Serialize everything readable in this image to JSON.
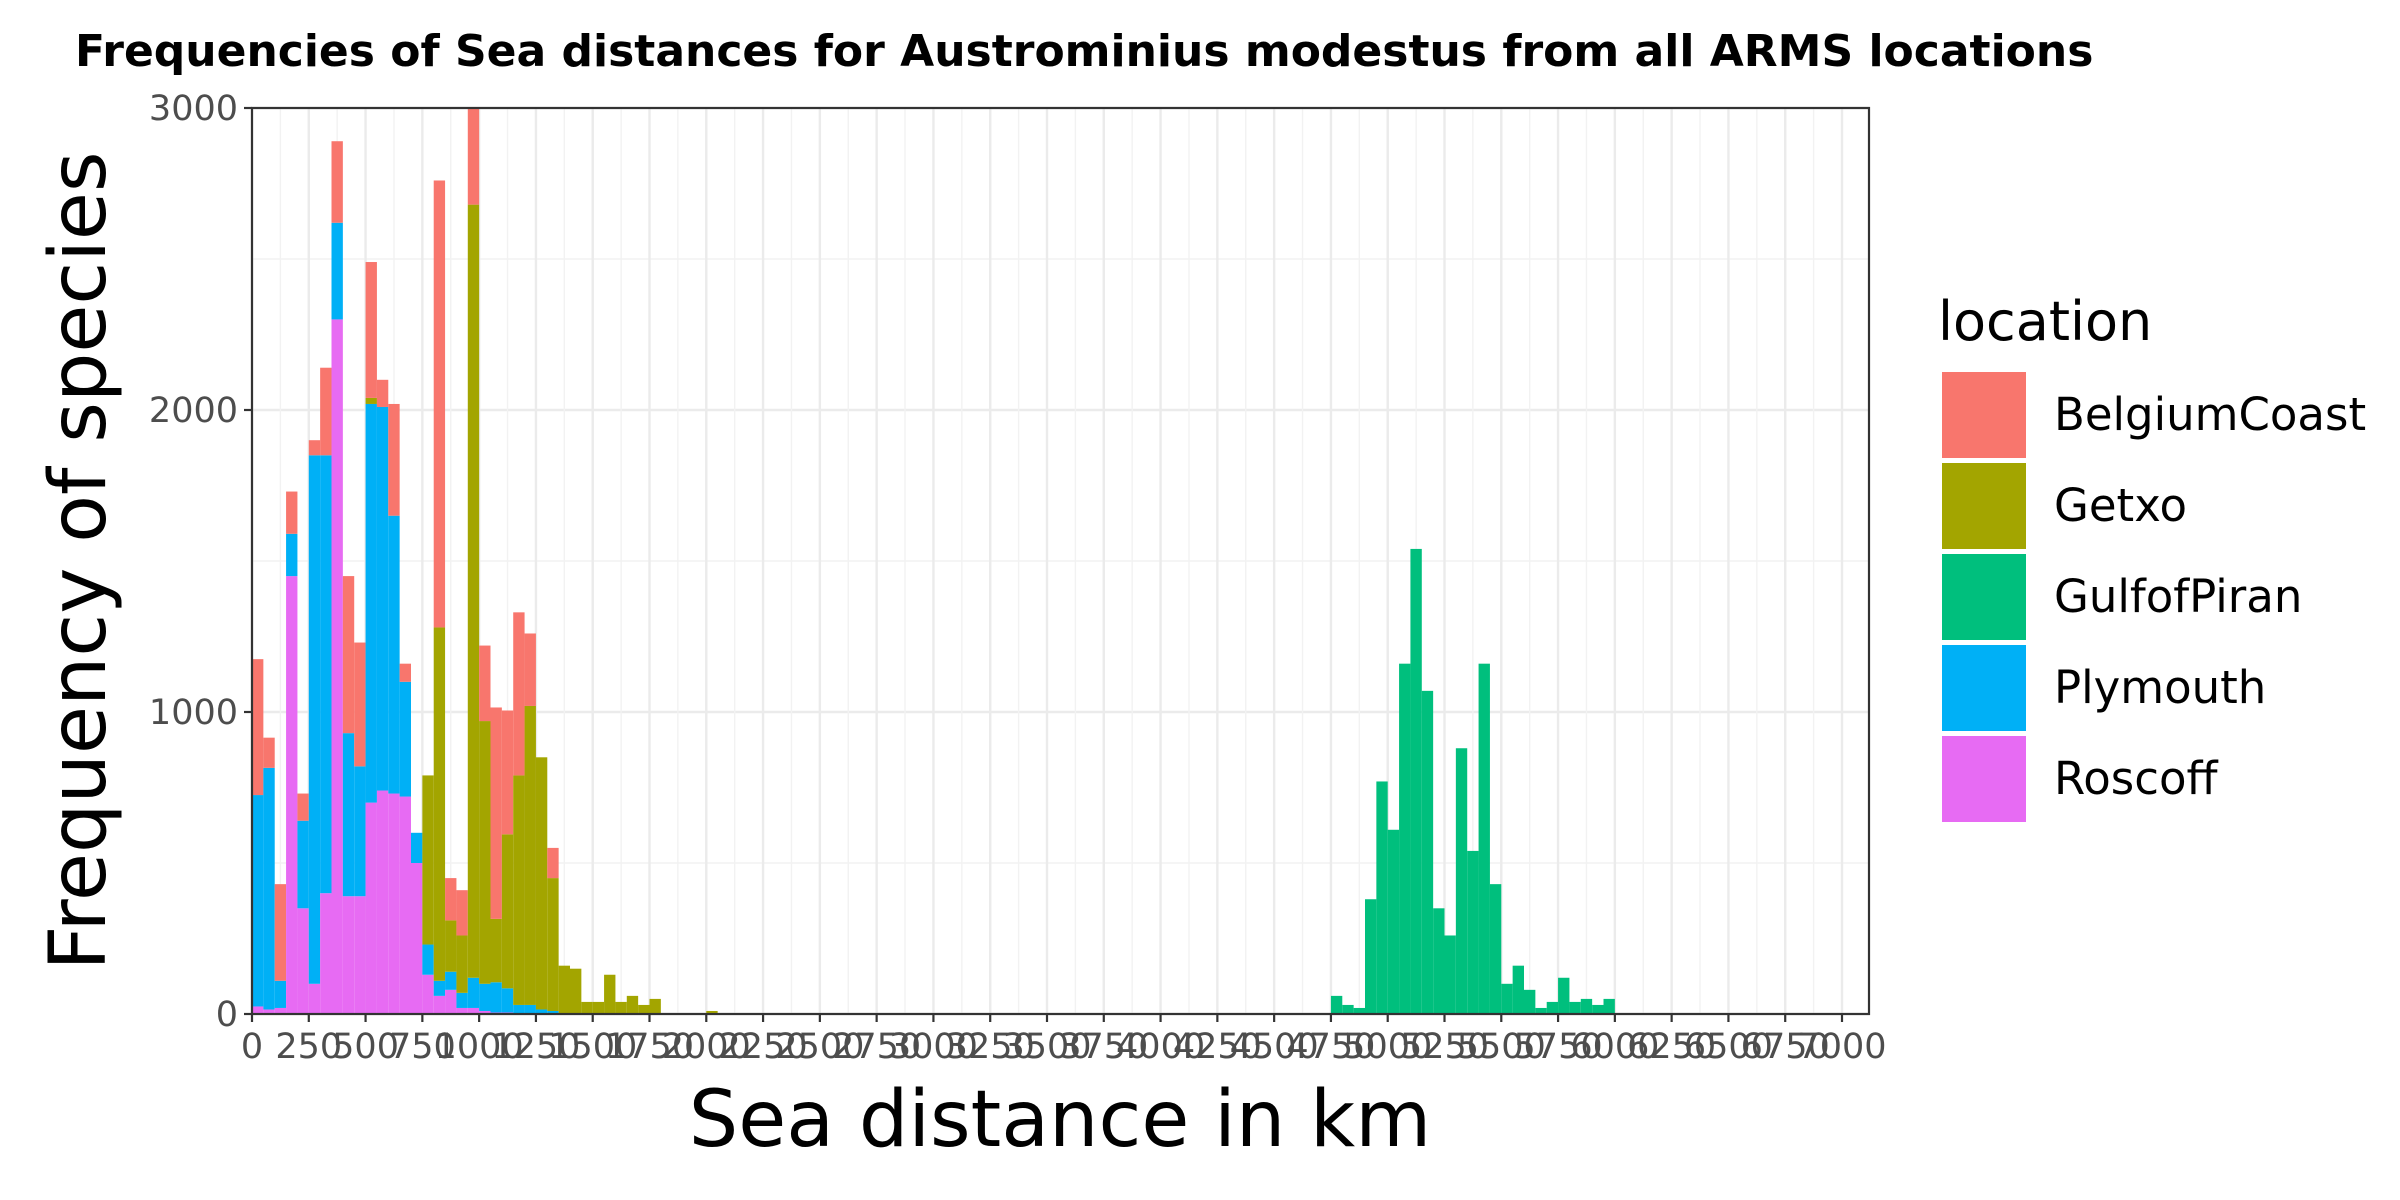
{
  "chart_data": {
    "type": "bar",
    "stacked": true,
    "title": "Frequencies of Sea distances for Austrominius modestus from all ARMS locations",
    "xlabel": "Sea distance in km",
    "ylabel": "Frequency of species",
    "xlim": [
      0,
      7150
    ],
    "ylim": [
      0,
      3000
    ],
    "bin_width": 50,
    "x_ticks": [
      0,
      250,
      500,
      750,
      1000,
      1250,
      1500,
      1750,
      2000,
      2250,
      2500,
      2750,
      3000,
      3250,
      3500,
      3750,
      4000,
      4250,
      4500,
      4750,
      5000,
      5250,
      5500,
      5750,
      6000,
      6250,
      6500,
      6750,
      7000
    ],
    "y_ticks": [
      0,
      1000,
      2000,
      3000
    ],
    "grid": true,
    "legend_title": "location",
    "legend_position": "right",
    "series": [
      {
        "name": "BelgiumCoast",
        "color": "#F8766D"
      },
      {
        "name": "Getxo",
        "color": "#A3A500"
      },
      {
        "name": "GulfofPiran",
        "color": "#00BF7D"
      },
      {
        "name": "Plymouth",
        "color": "#00B0F6"
      },
      {
        "name": "Roscoff",
        "color": "#E76BF3"
      }
    ],
    "stack_order": [
      "Roscoff",
      "Plymouth",
      "GulfofPiran",
      "Getxo",
      "BelgiumCoast"
    ],
    "bins": [
      {
        "x": 0,
        "BelgiumCoast": 450,
        "Getxo": 0,
        "GulfofPiran": 0,
        "Plymouth": 700,
        "Roscoff": 25
      },
      {
        "x": 50,
        "BelgiumCoast": 100,
        "Getxo": 0,
        "GulfofPiran": 0,
        "Plymouth": 800,
        "Roscoff": 15
      },
      {
        "x": 100,
        "BelgiumCoast": 320,
        "Getxo": 0,
        "GulfofPiran": 0,
        "Plymouth": 90,
        "Roscoff": 20
      },
      {
        "x": 150,
        "BelgiumCoast": 140,
        "Getxo": 0,
        "GulfofPiran": 0,
        "Plymouth": 140,
        "Roscoff": 1450
      },
      {
        "x": 200,
        "BelgiumCoast": 90,
        "Getxo": 0,
        "GulfofPiran": 0,
        "Plymouth": 290,
        "Roscoff": 350
      },
      {
        "x": 250,
        "BelgiumCoast": 50,
        "Getxo": 0,
        "GulfofPiran": 0,
        "Plymouth": 1750,
        "Roscoff": 100
      },
      {
        "x": 300,
        "BelgiumCoast": 290,
        "Getxo": 0,
        "GulfofPiran": 0,
        "Plymouth": 1450,
        "Roscoff": 400
      },
      {
        "x": 350,
        "BelgiumCoast": 270,
        "Getxo": 0,
        "GulfofPiran": 0,
        "Plymouth": 320,
        "Roscoff": 2300
      },
      {
        "x": 400,
        "BelgiumCoast": 520,
        "Getxo": 0,
        "GulfofPiran": 0,
        "Plymouth": 540,
        "Roscoff": 390
      },
      {
        "x": 450,
        "BelgiumCoast": 410,
        "Getxo": 0,
        "GulfofPiran": 0,
        "Plymouth": 430,
        "Roscoff": 390
      },
      {
        "x": 500,
        "BelgiumCoast": 450,
        "Getxo": 20,
        "GulfofPiran": 0,
        "Plymouth": 1320,
        "Roscoff": 700
      },
      {
        "x": 550,
        "BelgiumCoast": 90,
        "Getxo": 0,
        "GulfofPiran": 0,
        "Plymouth": 1270,
        "Roscoff": 740
      },
      {
        "x": 600,
        "BelgiumCoast": 370,
        "Getxo": 0,
        "GulfofPiran": 0,
        "Plymouth": 920,
        "Roscoff": 730
      },
      {
        "x": 650,
        "BelgiumCoast": 60,
        "Getxo": 0,
        "GulfofPiran": 0,
        "Plymouth": 380,
        "Roscoff": 720
      },
      {
        "x": 700,
        "BelgiumCoast": 0,
        "Getxo": 0,
        "GulfofPiran": 0,
        "Plymouth": 100,
        "Roscoff": 500
      },
      {
        "x": 750,
        "BelgiumCoast": 0,
        "Getxo": 560,
        "GulfofPiran": 0,
        "Plymouth": 100,
        "Roscoff": 130
      },
      {
        "x": 800,
        "BelgiumCoast": 1480,
        "Getxo": 1170,
        "GulfofPiran": 0,
        "Plymouth": 50,
        "Roscoff": 60
      },
      {
        "x": 850,
        "BelgiumCoast": 140,
        "Getxo": 170,
        "GulfofPiran": 0,
        "Plymouth": 60,
        "Roscoff": 80
      },
      {
        "x": 900,
        "BelgiumCoast": 150,
        "Getxo": 190,
        "GulfofPiran": 0,
        "Plymouth": 50,
        "Roscoff": 20
      },
      {
        "x": 950,
        "BelgiumCoast": 320,
        "Getxo": 2560,
        "GulfofPiran": 0,
        "Plymouth": 100,
        "Roscoff": 20
      },
      {
        "x": 1000,
        "BelgiumCoast": 250,
        "Getxo": 870,
        "GulfofPiran": 0,
        "Plymouth": 90,
        "Roscoff": 10
      },
      {
        "x": 1050,
        "BelgiumCoast": 700,
        "Getxo": 210,
        "GulfofPiran": 0,
        "Plymouth": 100,
        "Roscoff": 5
      },
      {
        "x": 1100,
        "BelgiumCoast": 410,
        "Getxo": 510,
        "GulfofPiran": 0,
        "Plymouth": 80,
        "Roscoff": 5
      },
      {
        "x": 1150,
        "BelgiumCoast": 540,
        "Getxo": 760,
        "GulfofPiran": 0,
        "Plymouth": 30,
        "Roscoff": 0
      },
      {
        "x": 1200,
        "BelgiumCoast": 240,
        "Getxo": 990,
        "GulfofPiran": 0,
        "Plymouth": 30,
        "Roscoff": 0
      },
      {
        "x": 1250,
        "BelgiumCoast": 0,
        "Getxo": 835,
        "GulfofPiran": 0,
        "Plymouth": 15,
        "Roscoff": 0
      },
      {
        "x": 1300,
        "BelgiumCoast": 100,
        "Getxo": 440,
        "GulfofPiran": 0,
        "Plymouth": 10,
        "Roscoff": 0
      },
      {
        "x": 1350,
        "BelgiumCoast": 0,
        "Getxo": 160,
        "GulfofPiran": 0,
        "Plymouth": 0,
        "Roscoff": 0
      },
      {
        "x": 1400,
        "BelgiumCoast": 0,
        "Getxo": 150,
        "GulfofPiran": 0,
        "Plymouth": 0,
        "Roscoff": 0
      },
      {
        "x": 1450,
        "BelgiumCoast": 0,
        "Getxo": 40,
        "GulfofPiran": 0,
        "Plymouth": 0,
        "Roscoff": 0
      },
      {
        "x": 1500,
        "BelgiumCoast": 0,
        "Getxo": 40,
        "GulfofPiran": 0,
        "Plymouth": 0,
        "Roscoff": 0
      },
      {
        "x": 1550,
        "BelgiumCoast": 0,
        "Getxo": 130,
        "GulfofPiran": 0,
        "Plymouth": 0,
        "Roscoff": 0
      },
      {
        "x": 1600,
        "BelgiumCoast": 0,
        "Getxo": 40,
        "GulfofPiran": 0,
        "Plymouth": 0,
        "Roscoff": 0
      },
      {
        "x": 1650,
        "BelgiumCoast": 0,
        "Getxo": 60,
        "GulfofPiran": 0,
        "Plymouth": 0,
        "Roscoff": 0
      },
      {
        "x": 1700,
        "BelgiumCoast": 0,
        "Getxo": 30,
        "GulfofPiran": 0,
        "Plymouth": 0,
        "Roscoff": 0
      },
      {
        "x": 1750,
        "BelgiumCoast": 0,
        "Getxo": 50,
        "GulfofPiran": 0,
        "Plymouth": 0,
        "Roscoff": 0
      },
      {
        "x": 2000,
        "BelgiumCoast": 0,
        "Getxo": 10,
        "GulfofPiran": 0,
        "Plymouth": 0,
        "Roscoff": 0
      },
      {
        "x": 4750,
        "BelgiumCoast": 0,
        "Getxo": 0,
        "GulfofPiran": 60,
        "Plymouth": 0,
        "Roscoff": 0
      },
      {
        "x": 4800,
        "BelgiumCoast": 0,
        "Getxo": 0,
        "GulfofPiran": 30,
        "Plymouth": 0,
        "Roscoff": 0
      },
      {
        "x": 4850,
        "BelgiumCoast": 0,
        "Getxo": 0,
        "GulfofPiran": 20,
        "Plymouth": 0,
        "Roscoff": 0
      },
      {
        "x": 4900,
        "BelgiumCoast": 0,
        "Getxo": 0,
        "GulfofPiran": 380,
        "Plymouth": 0,
        "Roscoff": 0
      },
      {
        "x": 4950,
        "BelgiumCoast": 0,
        "Getxo": 0,
        "GulfofPiran": 770,
        "Plymouth": 0,
        "Roscoff": 0
      },
      {
        "x": 5000,
        "BelgiumCoast": 0,
        "Getxo": 0,
        "GulfofPiran": 610,
        "Plymouth": 0,
        "Roscoff": 0
      },
      {
        "x": 5050,
        "BelgiumCoast": 0,
        "Getxo": 0,
        "GulfofPiran": 1160,
        "Plymouth": 0,
        "Roscoff": 0
      },
      {
        "x": 5100,
        "BelgiumCoast": 0,
        "Getxo": 0,
        "GulfofPiran": 1540,
        "Plymouth": 0,
        "Roscoff": 0
      },
      {
        "x": 5150,
        "BelgiumCoast": 0,
        "Getxo": 0,
        "GulfofPiran": 1070,
        "Plymouth": 0,
        "Roscoff": 0
      },
      {
        "x": 5200,
        "BelgiumCoast": 0,
        "Getxo": 0,
        "GulfofPiran": 350,
        "Plymouth": 0,
        "Roscoff": 0
      },
      {
        "x": 5250,
        "BelgiumCoast": 0,
        "Getxo": 0,
        "GulfofPiran": 260,
        "Plymouth": 0,
        "Roscoff": 0
      },
      {
        "x": 5300,
        "BelgiumCoast": 0,
        "Getxo": 0,
        "GulfofPiran": 880,
        "Plymouth": 0,
        "Roscoff": 0
      },
      {
        "x": 5350,
        "BelgiumCoast": 0,
        "Getxo": 0,
        "GulfofPiran": 540,
        "Plymouth": 0,
        "Roscoff": 0
      },
      {
        "x": 5400,
        "BelgiumCoast": 0,
        "Getxo": 0,
        "GulfofPiran": 1160,
        "Plymouth": 0,
        "Roscoff": 0
      },
      {
        "x": 5450,
        "BelgiumCoast": 0,
        "Getxo": 0,
        "GulfofPiran": 430,
        "Plymouth": 0,
        "Roscoff": 0
      },
      {
        "x": 5500,
        "BelgiumCoast": 0,
        "Getxo": 0,
        "GulfofPiran": 100,
        "Plymouth": 0,
        "Roscoff": 0
      },
      {
        "x": 5550,
        "BelgiumCoast": 0,
        "Getxo": 0,
        "GulfofPiran": 160,
        "Plymouth": 0,
        "Roscoff": 0
      },
      {
        "x": 5600,
        "BelgiumCoast": 0,
        "Getxo": 0,
        "GulfofPiran": 80,
        "Plymouth": 0,
        "Roscoff": 0
      },
      {
        "x": 5650,
        "BelgiumCoast": 0,
        "Getxo": 0,
        "GulfofPiran": 20,
        "Plymouth": 0,
        "Roscoff": 0
      },
      {
        "x": 5700,
        "BelgiumCoast": 0,
        "Getxo": 0,
        "GulfofPiran": 40,
        "Plymouth": 0,
        "Roscoff": 0
      },
      {
        "x": 5750,
        "BelgiumCoast": 0,
        "Getxo": 0,
        "GulfofPiran": 120,
        "Plymouth": 0,
        "Roscoff": 0
      },
      {
        "x": 5800,
        "BelgiumCoast": 0,
        "Getxo": 0,
        "GulfofPiran": 40,
        "Plymouth": 0,
        "Roscoff": 0
      },
      {
        "x": 5850,
        "BelgiumCoast": 0,
        "Getxo": 0,
        "GulfofPiran": 50,
        "Plymouth": 0,
        "Roscoff": 0
      },
      {
        "x": 5900,
        "BelgiumCoast": 0,
        "Getxo": 0,
        "GulfofPiran": 30,
        "Plymouth": 0,
        "Roscoff": 0
      },
      {
        "x": 5950,
        "BelgiumCoast": 0,
        "Getxo": 0,
        "GulfofPiran": 50,
        "Plymouth": 0,
        "Roscoff": 0
      }
    ]
  }
}
